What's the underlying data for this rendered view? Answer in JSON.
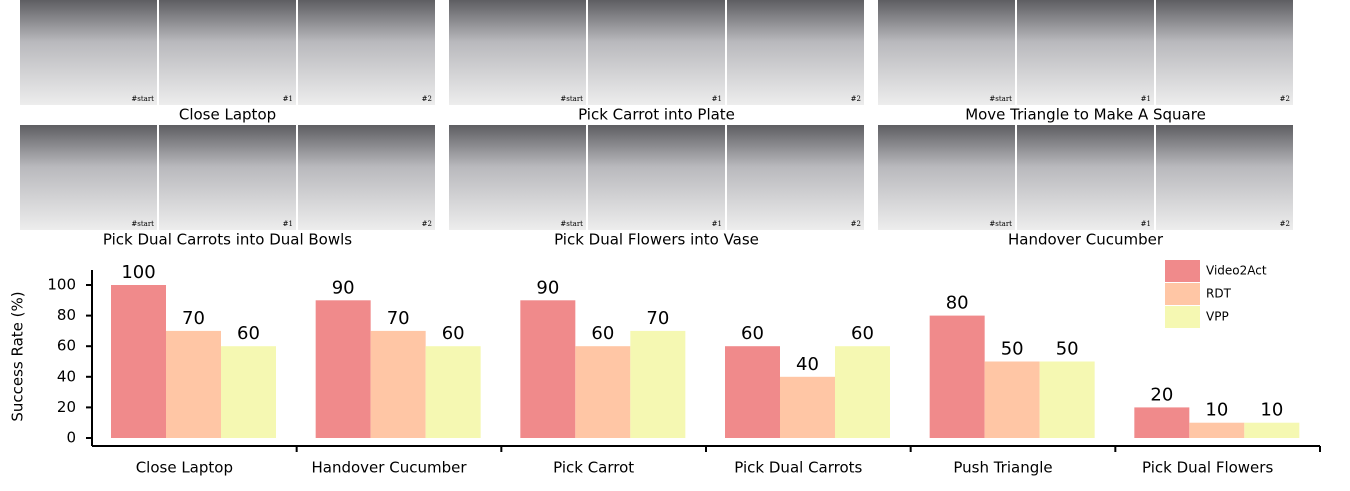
{
  "panels": [
    {
      "caption": "Close Laptop",
      "frames": [
        "#start",
        "#1",
        "#2"
      ]
    },
    {
      "caption": "Pick Carrot into Plate",
      "frames": [
        "#start",
        "#1",
        "#2"
      ]
    },
    {
      "caption": "Move Triangle to Make A Square",
      "frames": [
        "#start",
        "#1",
        "#2"
      ]
    },
    {
      "caption": "Pick Dual Carrots into Dual Bowls",
      "frames": [
        "#start",
        "#1",
        "#2"
      ]
    },
    {
      "caption": "Pick Dual Flowers into Vase",
      "frames": [
        "#start",
        "#1",
        "#2"
      ]
    },
    {
      "caption": "Handover Cucumber",
      "frames": [
        "#start",
        "#1",
        "#2"
      ]
    }
  ],
  "chart_data": {
    "type": "bar",
    "ylabel": "Success Rate (%)",
    "categories": [
      "Close Laptop",
      "Handover Cucumber",
      "Pick Carrot",
      "Pick Dual Carrots",
      "Push Triangle",
      "Pick Dual Flowers"
    ],
    "series": [
      {
        "name": "Video2Act",
        "color": "#f08a8b",
        "values": [
          100,
          90,
          90,
          60,
          80,
          20
        ]
      },
      {
        "name": "RDT",
        "color": "#ffc6a5",
        "values": [
          70,
          70,
          60,
          40,
          50,
          10
        ]
      },
      {
        "name": "VPP",
        "color": "#f5f8b2",
        "values": [
          60,
          60,
          70,
          60,
          50,
          10
        ]
      }
    ],
    "ylim": [
      0,
      100
    ],
    "yticks": [
      0,
      20,
      40,
      60,
      80,
      100
    ],
    "legend": "upper right"
  }
}
